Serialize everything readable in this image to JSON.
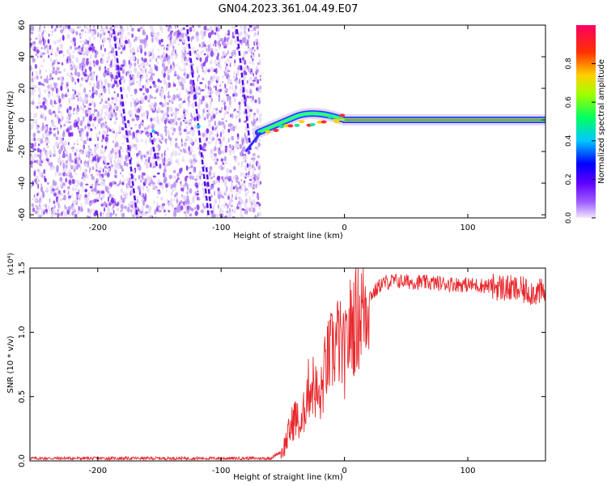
{
  "title": "GN04.2023.361.04.49.E07",
  "chart_data": [
    {
      "type": "heatmap",
      "title": "GN04.2023.361.04.49.E07",
      "xlabel": "Height of straight line (km)",
      "ylabel": "Frequency (Hz)",
      "xlim": [
        -255,
        163
      ],
      "ylim": [
        -62,
        60
      ],
      "x_ticks": [
        -200,
        -100,
        0,
        100
      ],
      "x_tick_labels": [
        "-200",
        "-100",
        "0",
        "100"
      ],
      "y_ticks": [
        -60,
        -40,
        -20,
        0,
        20,
        40,
        60
      ],
      "y_tick_labels": [
        "-60",
        "-40",
        "-20",
        "0",
        "20",
        "40",
        "60"
      ],
      "noise_region_x": [
        -255,
        -68
      ],
      "carrier_frequency": 0,
      "colorbar": {
        "label": "Normalized spectral amplitude",
        "range": [
          0,
          1
        ],
        "ticks": [
          0.0,
          0.2,
          0.4,
          0.6,
          0.8
        ],
        "tick_labels": [
          "0.0",
          "0.2",
          "0.4",
          "0.6",
          "0.8"
        ],
        "colormap": "rainbow",
        "colors": [
          "#f0e8fa",
          "#8000ff",
          "#0000ff",
          "#00c0ff",
          "#00ff40",
          "#c0ff00",
          "#ffc000",
          "#ff4000",
          "#ff0060"
        ]
      }
    },
    {
      "type": "line",
      "xlabel": "Height of straight line (km)",
      "ylabel": "SNR (10 * v/v)",
      "y_multiplier": "(x10⁴)",
      "xlim": [
        -255,
        163
      ],
      "ylim": [
        0,
        1.5
      ],
      "x_ticks": [
        -200,
        -100,
        0,
        100
      ],
      "x_tick_labels": [
        "-200",
        "-100",
        "0",
        "100"
      ],
      "y_ticks": [
        0.0,
        0.5,
        1.0,
        1.5
      ],
      "y_tick_labels": [
        "0.0",
        "0.5",
        "1.0",
        "1.5"
      ],
      "color": "#e8282c",
      "x": [
        -255,
        -200,
        -150,
        -100,
        -60,
        -50,
        -45,
        -40,
        -35,
        -30,
        -25,
        -20,
        -15,
        -10,
        -5,
        0,
        5,
        10,
        15,
        20,
        25,
        30,
        40,
        60,
        80,
        100,
        120,
        140,
        150,
        160
      ],
      "y": [
        0.02,
        0.02,
        0.02,
        0.02,
        0.02,
        0.08,
        0.22,
        0.35,
        0.25,
        0.55,
        0.6,
        0.45,
        0.75,
        0.85,
        0.95,
        0.8,
        1.05,
        1.1,
        1.2,
        1.28,
        1.32,
        1.38,
        1.4,
        1.39,
        1.38,
        1.37,
        1.36,
        1.33,
        1.32,
        1.31
      ]
    }
  ]
}
